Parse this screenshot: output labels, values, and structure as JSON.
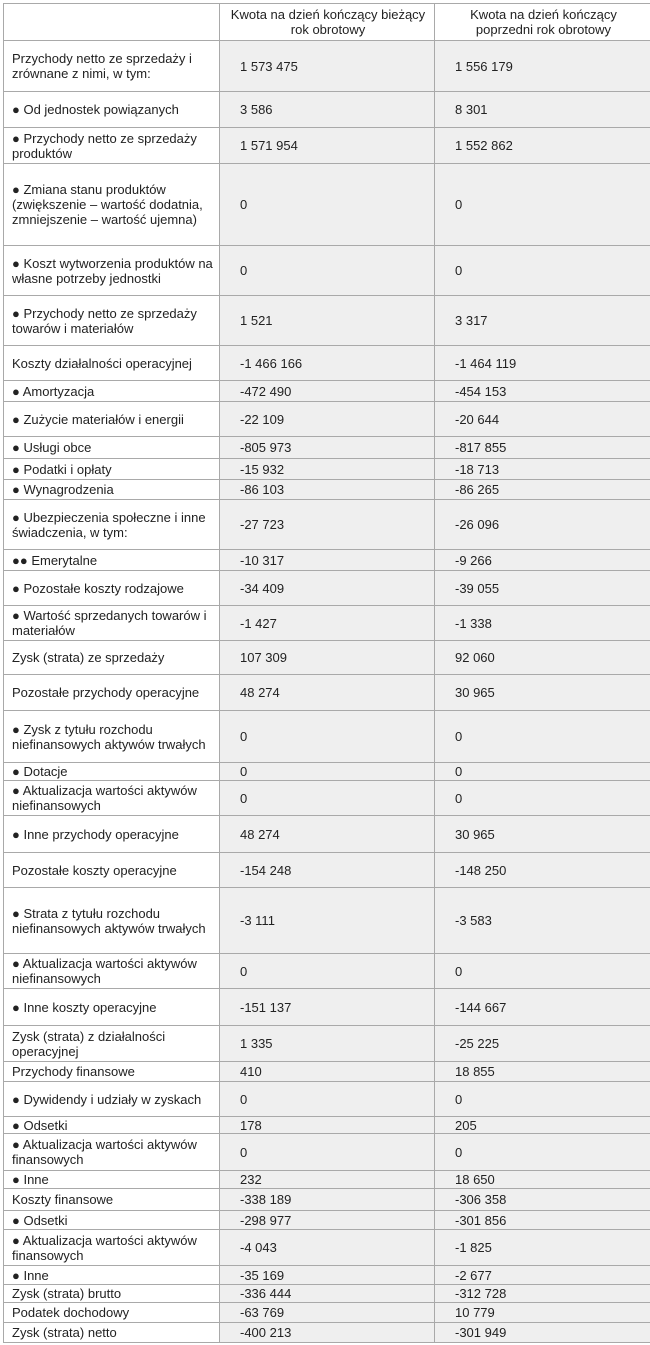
{
  "header": {
    "col0": "",
    "col1": "Kwota na dzień kończący bieżący rok obrotowy",
    "col2": "Kwota na dzień kończący poprzedni rok obrotowy"
  },
  "rows": [
    {
      "label": "Przychody netto ze sprzedaży i zrównane z nimi, w tym:",
      "current": "1 573 475",
      "previous": "1 556 179"
    },
    {
      "label": "● Od jednostek powiązanych",
      "current": "3 586",
      "previous": "8 301"
    },
    {
      "label": "● Przychody netto ze sprzedaży produktów",
      "current": "1 571 954",
      "previous": "1 552 862"
    },
    {
      "label": "● Zmiana stanu produktów (zwiększenie – wartość dodatnia, zmniejszenie – wartość ujemna)",
      "current": "0",
      "previous": "0"
    },
    {
      "label": "● Koszt wytworzenia produktów na własne potrzeby jednostki",
      "current": "0",
      "previous": "0"
    },
    {
      "label": "● Przychody netto ze sprzedaży towarów i materiałów",
      "current": "1 521",
      "previous": "3 317"
    },
    {
      "label": "Koszty działalności operacyjnej",
      "current": "-1 466 166",
      "previous": "-1 464 119"
    },
    {
      "label": "● Amortyzacja",
      "current": "-472 490",
      "previous": "-454 153"
    },
    {
      "label": "● Zużycie materiałów i energii",
      "current": "-22 109",
      "previous": "-20 644"
    },
    {
      "label": "● Usługi obce",
      "current": "-805 973",
      "previous": "-817 855"
    },
    {
      "label": "● Podatki i opłaty",
      "current": "-15 932",
      "previous": "-18 713"
    },
    {
      "label": "● Wynagrodzenia",
      "current": "-86 103",
      "previous": "-86 265"
    },
    {
      "label": "● Ubezpieczenia społeczne i inne świadczenia, w tym:",
      "current": "-27 723",
      "previous": "-26 096"
    },
    {
      "label": "●● Emerytalne",
      "current": "-10 317",
      "previous": "-9 266"
    },
    {
      "label": "● Pozostałe koszty rodzajowe",
      "current": "-34 409",
      "previous": "-39 055"
    },
    {
      "label": "● Wartość sprzedanych towarów i materiałów",
      "current": "-1 427",
      "previous": "-1 338"
    },
    {
      "label": "Zysk (strata) ze sprzedaży",
      "current": "107 309",
      "previous": "92 060"
    },
    {
      "label": "Pozostałe przychody operacyjne",
      "current": "48 274",
      "previous": "30 965"
    },
    {
      "label": "● Zysk z tytułu rozchodu niefinansowych aktywów trwałych",
      "current": "0",
      "previous": "0"
    },
    {
      "label": "● Dotacje",
      "current": "0",
      "previous": "0"
    },
    {
      "label": "● Aktualizacja wartości aktywów niefinansowych",
      "current": "0",
      "previous": "0"
    },
    {
      "label": "● Inne przychody operacyjne",
      "current": "48 274",
      "previous": "30 965"
    },
    {
      "label": "Pozostałe koszty operacyjne",
      "current": "-154 248",
      "previous": "-148 250"
    },
    {
      "label": "● Strata z tytułu rozchodu niefinansowych aktywów trwałych",
      "current": "-3 111",
      "previous": "-3 583"
    },
    {
      "label": "● Aktualizacja wartości aktywów niefinansowych",
      "current": "0",
      "previous": "0"
    },
    {
      "label": "● Inne koszty operacyjne",
      "current": "-151 137",
      "previous": "-144 667"
    },
    {
      "label": "Zysk (strata) z działalności operacyjnej",
      "current": "1 335",
      "previous": "-25 225"
    },
    {
      "label": "Przychody finansowe",
      "current": "410",
      "previous": "18 855"
    },
    {
      "label": "● Dywidendy i udziały w zyskach",
      "current": "0",
      "previous": "0"
    },
    {
      "label": "● Odsetki",
      "current": "178",
      "previous": "205"
    },
    {
      "label": "● Aktualizacja wartości aktywów finansowych",
      "current": "0",
      "previous": "0"
    },
    {
      "label": "● Inne",
      "current": "232",
      "previous": "18 650"
    },
    {
      "label": "Koszty finansowe",
      "current": "-338 189",
      "previous": "-306 358"
    },
    {
      "label": "● Odsetki",
      "current": "-298 977",
      "previous": "-301 856"
    },
    {
      "label": "● Aktualizacja wartości aktywów finansowych",
      "current": "-4 043",
      "previous": "-1 825"
    },
    {
      "label": "● Inne",
      "current": "-35 169",
      "previous": "-2 677"
    },
    {
      "label": "Zysk (strata) brutto",
      "current": "-336 444",
      "previous": "-312 728"
    },
    {
      "label": "Podatek dochodowy",
      "current": "-63 769",
      "previous": "10 779"
    },
    {
      "label": "Zysk (strata) netto",
      "current": "-400 213",
      "previous": "-301 949"
    }
  ]
}
